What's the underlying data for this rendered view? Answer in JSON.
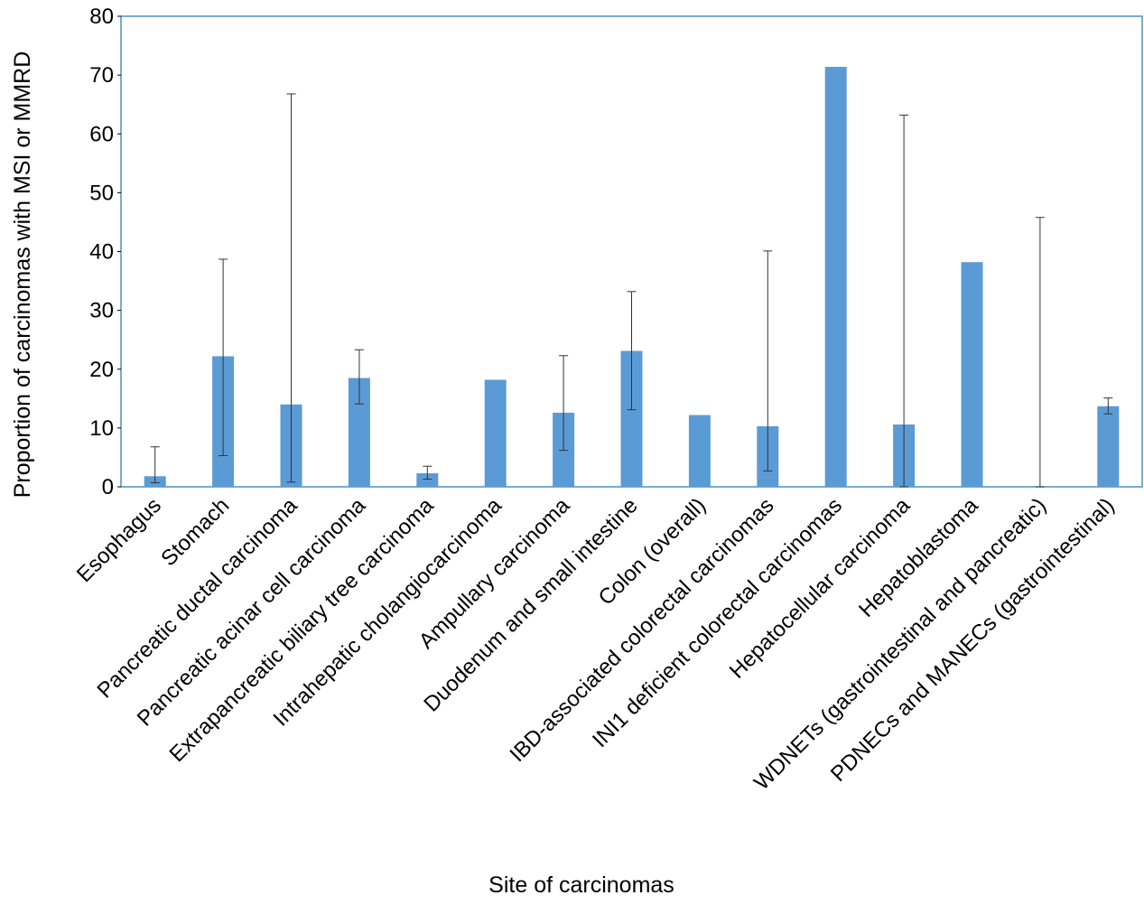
{
  "chart_data": {
    "type": "bar",
    "title": "",
    "xlabel": "Site of carcinomas",
    "ylabel": "Proportion of carcinomas with MSI or MMRD",
    "ylim": [
      0,
      80
    ],
    "yticks": [
      0,
      10,
      20,
      30,
      40,
      50,
      60,
      70,
      80
    ],
    "grid": false,
    "legend": "none",
    "bar_color": "#5B9BD5",
    "error_bar_color": "#333333",
    "frame_color": "#4A90C2",
    "categories": [
      "Esophagus",
      "Stomach",
      "Pancreatic ductal carcinoma",
      "Pancreatic acinar cell carcinoma",
      "Extrapancreatic biliary tree carcinoma",
      "Intrahepatic cholangiocarcinoma",
      "Ampullary carcinoma",
      "Duodenum and small intestine",
      "Colon (overall)",
      "IBD-associated colorectal carcinomas",
      "INI1 deficient colorectal carcinomas",
      "Hepatocellular carcinoma",
      "Hepatoblastoma",
      "WDNETs (gastrointestinal and pancreatic)",
      "PDNECs and MANECs (gastrointestinal)"
    ],
    "values": [
      1.8,
      22.2,
      14.0,
      18.5,
      2.3,
      18.2,
      12.6,
      23.1,
      12.2,
      10.3,
      71.4,
      10.6,
      38.2,
      0,
      13.7
    ],
    "error_low": [
      0.7,
      5.3,
      0.8,
      14.1,
      1.3,
      18.2,
      6.2,
      13.1,
      12.2,
      2.7,
      71.4,
      0.0,
      38.2,
      0,
      12.4
    ],
    "error_high": [
      6.8,
      38.7,
      66.8,
      23.3,
      3.5,
      18.2,
      22.3,
      33.2,
      12.2,
      40.1,
      71.4,
      63.2,
      38.2,
      45.8,
      15.1
    ]
  }
}
